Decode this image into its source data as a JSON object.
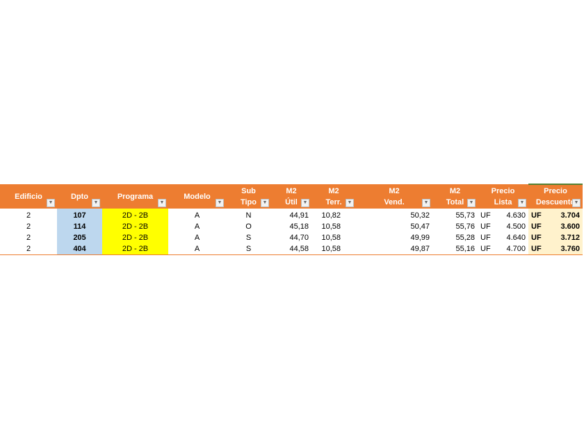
{
  "colors": {
    "header": "#ED7D31",
    "dpto": "#BDD7EE",
    "programa": "#FFFF00",
    "descuento": "#FFF2CC"
  },
  "headers": [
    {
      "l1": "",
      "l2": "Edificio"
    },
    {
      "l1": "",
      "l2": "Dpto"
    },
    {
      "l1": "",
      "l2": "Programa"
    },
    {
      "l1": "",
      "l2": "Modelo"
    },
    {
      "l1": "Sub",
      "l2": "Tipo"
    },
    {
      "l1": "M2",
      "l2": "Útil"
    },
    {
      "l1": "M2",
      "l2": "Terr."
    },
    {
      "l1": "M2",
      "l2": "Vend."
    },
    {
      "l1": "M2",
      "l2": "Total"
    },
    {
      "l1": "Precio",
      "l2": "Lista"
    },
    {
      "l1": "Precio",
      "l2": "Descuento"
    }
  ],
  "rows": [
    {
      "edificio": "2",
      "dpto": "107",
      "programa": "2D - 2B",
      "modelo": "A",
      "subtipo": "N",
      "util": "44,91",
      "terr": "10,82",
      "vend": "50,32",
      "total": "55,73",
      "uf1": "UF",
      "lista": "4.630",
      "uf2": "UF",
      "descuento": "3.704"
    },
    {
      "edificio": "2",
      "dpto": "114",
      "programa": "2D - 2B",
      "modelo": "A",
      "subtipo": "O",
      "util": "45,18",
      "terr": "10,58",
      "vend": "50,47",
      "total": "55,76",
      "uf1": "UF",
      "lista": "4.500",
      "uf2": "UF",
      "descuento": "3.600"
    },
    {
      "edificio": "2",
      "dpto": "205",
      "programa": "2D - 2B",
      "modelo": "A",
      "subtipo": "S",
      "util": "44,70",
      "terr": "10,58",
      "vend": "49,99",
      "total": "55,28",
      "uf1": "UF",
      "lista": "4.640",
      "uf2": "UF",
      "descuento": "3.712"
    },
    {
      "edificio": "2",
      "dpto": "404",
      "programa": "2D - 2B",
      "modelo": "A",
      "subtipo": "S",
      "util": "44,58",
      "terr": "10,58",
      "vend": "49,87",
      "total": "55,16",
      "uf1": "UF",
      "lista": "4.700",
      "uf2": "UF",
      "descuento": "3.760"
    }
  ]
}
